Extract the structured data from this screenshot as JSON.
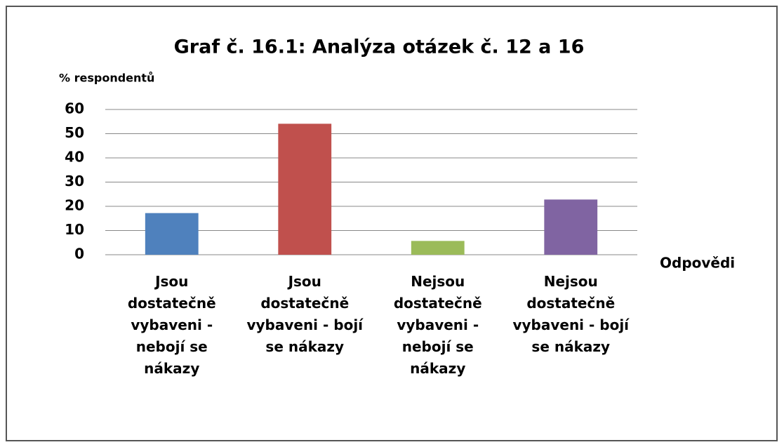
{
  "chart_data": {
    "type": "bar",
    "title": "Graf č. 16.1: Analýza otázek č. 12 a 16",
    "y_label": "% respondentů",
    "x_label": "Odpovědi",
    "categories": [
      "Jsou dostatečně vybaveni - nebojí se nákazy",
      "Jsou dostatečně vybaveni - bojí se nákazy",
      "Nejsou dostatečně vybaveni - nebojí se nákazy",
      "Nejsou dostatečně vybaveni - bojí se nákazy"
    ],
    "values": [
      17.2,
      54.1,
      5.7,
      22.8
    ],
    "colors": [
      "#4f81bd",
      "#c0504d",
      "#9bbb59",
      "#8064a2"
    ],
    "ylim": [
      0,
      60
    ],
    "yticks": [
      0,
      10,
      20,
      30,
      40,
      50,
      60
    ],
    "grid": true
  }
}
